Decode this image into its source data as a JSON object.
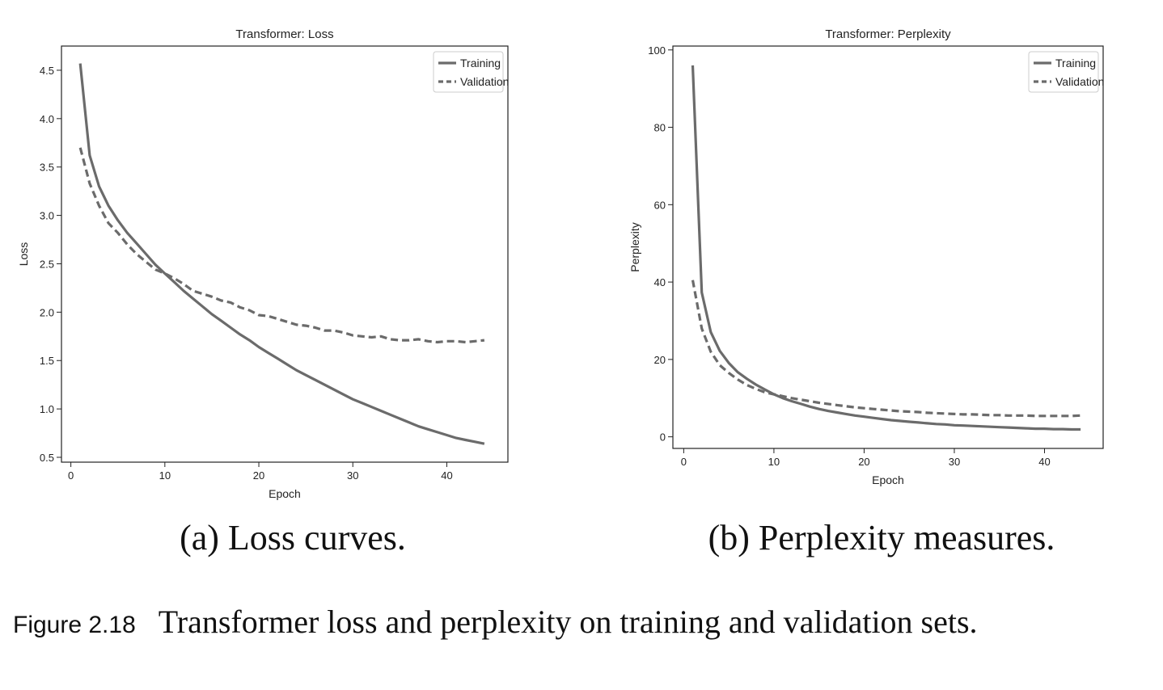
{
  "chart_data": [
    {
      "type": "line",
      "title": "Transformer: Loss",
      "xlabel": "Epoch",
      "ylabel": "Loss",
      "xlim": [
        -1,
        46.5
      ],
      "ylim": [
        0.45,
        4.75
      ],
      "xticks": [
        0,
        10,
        20,
        30,
        40
      ],
      "yticks": [
        0.5,
        1.0,
        1.5,
        2.0,
        2.5,
        3.0,
        3.5,
        4.0,
        4.5
      ],
      "legend_position": "top-right",
      "series": [
        {
          "name": "Training",
          "style": "solid",
          "x": [
            1,
            2,
            3,
            4,
            5,
            6,
            7,
            8,
            9,
            10,
            11,
            12,
            13,
            14,
            15,
            16,
            17,
            18,
            19,
            20,
            21,
            22,
            23,
            24,
            25,
            26,
            27,
            28,
            29,
            30,
            31,
            32,
            33,
            34,
            35,
            36,
            37,
            38,
            39,
            40,
            41,
            42,
            43,
            44
          ],
          "values": [
            4.57,
            3.62,
            3.3,
            3.1,
            2.95,
            2.82,
            2.71,
            2.6,
            2.49,
            2.4,
            2.31,
            2.22,
            2.14,
            2.06,
            1.98,
            1.91,
            1.84,
            1.77,
            1.71,
            1.64,
            1.58,
            1.52,
            1.46,
            1.4,
            1.35,
            1.3,
            1.25,
            1.2,
            1.15,
            1.1,
            1.06,
            1.02,
            0.98,
            0.94,
            0.9,
            0.86,
            0.82,
            0.79,
            0.76,
            0.73,
            0.7,
            0.68,
            0.66,
            0.64
          ]
        },
        {
          "name": "Validation",
          "style": "dashed",
          "x": [
            1,
            2,
            3,
            4,
            5,
            6,
            7,
            8,
            9,
            10,
            11,
            12,
            13,
            14,
            15,
            16,
            17,
            18,
            19,
            20,
            21,
            22,
            23,
            24,
            25,
            26,
            27,
            28,
            29,
            30,
            31,
            32,
            33,
            34,
            35,
            36,
            37,
            38,
            39,
            40,
            41,
            42,
            43,
            44
          ],
          "values": [
            3.7,
            3.33,
            3.1,
            2.92,
            2.82,
            2.7,
            2.6,
            2.52,
            2.44,
            2.4,
            2.35,
            2.29,
            2.22,
            2.19,
            2.16,
            2.12,
            2.1,
            2.05,
            2.02,
            1.97,
            1.96,
            1.93,
            1.9,
            1.87,
            1.86,
            1.84,
            1.81,
            1.81,
            1.79,
            1.76,
            1.75,
            1.74,
            1.75,
            1.72,
            1.71,
            1.71,
            1.72,
            1.7,
            1.69,
            1.7,
            1.7,
            1.69,
            1.7,
            1.71
          ]
        }
      ]
    },
    {
      "type": "line",
      "title": "Transformer: Perplexity",
      "xlabel": "Epoch",
      "ylabel": "Perplexity",
      "xlim": [
        -1.2,
        46.5
      ],
      "ylim": [
        -3,
        101
      ],
      "xticks": [
        0,
        10,
        20,
        30,
        40
      ],
      "yticks": [
        0,
        20,
        40,
        60,
        80,
        100
      ],
      "legend_position": "top-right",
      "series": [
        {
          "name": "Training",
          "style": "solid",
          "x": [
            1,
            2,
            3,
            4,
            5,
            6,
            7,
            8,
            9,
            10,
            11,
            12,
            13,
            14,
            15,
            16,
            17,
            18,
            19,
            20,
            21,
            22,
            23,
            24,
            25,
            26,
            27,
            28,
            29,
            30,
            31,
            32,
            33,
            34,
            35,
            36,
            37,
            38,
            39,
            40,
            41,
            42,
            43,
            44
          ],
          "values": [
            96,
            37.3,
            27.1,
            22.2,
            19.1,
            16.7,
            15.0,
            13.5,
            12.2,
            11.0,
            10.0,
            9.2,
            8.5,
            7.8,
            7.2,
            6.7,
            6.3,
            5.9,
            5.5,
            5.2,
            4.9,
            4.6,
            4.3,
            4.1,
            3.9,
            3.7,
            3.5,
            3.3,
            3.2,
            3.0,
            2.9,
            2.8,
            2.7,
            2.6,
            2.5,
            2.4,
            2.3,
            2.2,
            2.1,
            2.1,
            2.0,
            2.0,
            1.9,
            1.9
          ]
        },
        {
          "name": "Validation",
          "style": "dashed",
          "x": [
            1,
            2,
            3,
            4,
            5,
            6,
            7,
            8,
            9,
            10,
            11,
            12,
            13,
            14,
            15,
            16,
            17,
            18,
            19,
            20,
            21,
            22,
            23,
            24,
            25,
            26,
            27,
            28,
            29,
            30,
            31,
            32,
            33,
            34,
            35,
            36,
            37,
            38,
            39,
            40,
            41,
            42,
            43,
            44
          ],
          "values": [
            40.5,
            28,
            22,
            18.5,
            16.5,
            14.8,
            13.4,
            12.4,
            11.5,
            11.0,
            10.5,
            10.0,
            9.6,
            9.2,
            8.8,
            8.5,
            8.2,
            7.9,
            7.6,
            7.4,
            7.2,
            7.0,
            6.8,
            6.6,
            6.5,
            6.4,
            6.2,
            6.1,
            6.0,
            5.9,
            5.8,
            5.8,
            5.7,
            5.6,
            5.6,
            5.5,
            5.5,
            5.5,
            5.4,
            5.4,
            5.4,
            5.4,
            5.4,
            5.5
          ]
        }
      ]
    }
  ],
  "subcaptions": [
    "(a) Loss curves.",
    "(b) Perplexity measures."
  ],
  "caption": {
    "label": "Figure 2.18",
    "text": "Transformer loss and perplexity on training and validation sets."
  },
  "colors": {
    "line": "#6b6b6b",
    "axis": "#222222",
    "legend_border": "#cccccc"
  }
}
